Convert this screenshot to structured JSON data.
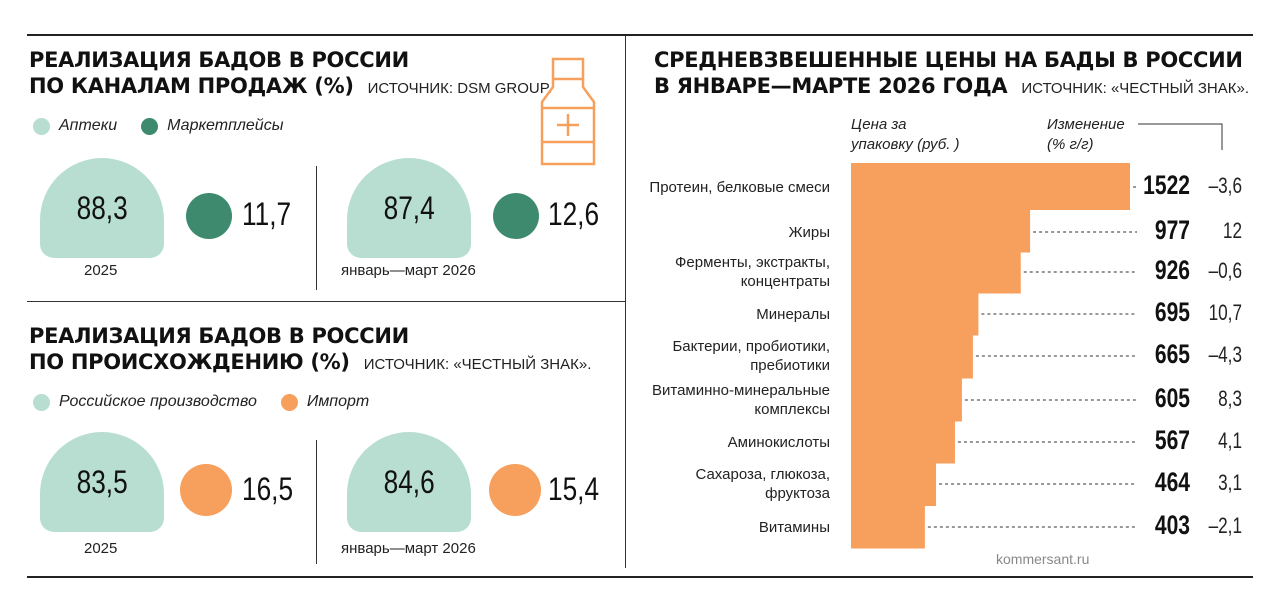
{
  "colors": {
    "teal": "#b7ded1",
    "dark_green": "#3d8a6e",
    "orange": "#f79f5c",
    "text": "#111111"
  },
  "channels": {
    "title_line1": "РЕАЛИЗАЦИЯ БАДОВ В РОССИИ",
    "title_line2": "ПО КАНАЛАМ ПРОДАЖ (%)",
    "source": "ИСТОЧНИК: DSM GROUP.",
    "legend": [
      "Аптеки",
      "Маркетплейсы"
    ],
    "icon": "supplement-bottle-icon",
    "periods": [
      {
        "label": "2025",
        "main": "88,3",
        "secondary": "11,7"
      },
      {
        "label": "январь—март 2026",
        "main": "87,4",
        "secondary": "12,6"
      }
    ]
  },
  "origin": {
    "title_line1": "РЕАЛИЗАЦИЯ БАДОВ В РОССИИ",
    "title_line2": "ПО ПРОИСХОЖДЕНИЮ (%)",
    "source": "ИСТОЧНИК: «ЧЕСТНЫЙ ЗНАК».",
    "legend": [
      "Российское производство",
      "Импорт"
    ],
    "periods": [
      {
        "label": "2025",
        "main": "83,5",
        "secondary": "16,5"
      },
      {
        "label": "январь—март 2026",
        "main": "84,6",
        "secondary": "15,4"
      }
    ]
  },
  "prices": {
    "title_line1": "СРЕДНЕВЗВЕШЕННЫЕ ЦЕНЫ НА БАДЫ В РОССИИ",
    "title_line2": "В ЯНВАРЕ—МАРТЕ 2026 ГОДА",
    "source": "ИСТОЧНИК: «ЧЕСТНЫЙ ЗНАК».",
    "col_price_line1": "Цена за",
    "col_price_line2": "упаковку (руб. )",
    "col_change_line1": "Изменение",
    "col_change_line2": "(% г/г)"
  },
  "credit": "kommersant.ru",
  "chart_data": [
    {
      "type": "bar",
      "title": "РЕАЛИЗАЦИЯ БАДОВ В РОССИИ ПО КАНАЛАМ ПРОДАЖ (%)",
      "categories": [
        "2025",
        "январь—март 2026"
      ],
      "series": [
        {
          "name": "Аптеки",
          "values": [
            88.3,
            87.4
          ]
        },
        {
          "name": "Маркетплейсы",
          "values": [
            11.7,
            12.6
          ]
        }
      ]
    },
    {
      "type": "bar",
      "title": "РЕАЛИЗАЦИЯ БАДОВ В РОССИИ ПО ПРОИСХОЖДЕНИЮ (%)",
      "categories": [
        "2025",
        "январь—март 2026"
      ],
      "series": [
        {
          "name": "Российское производство",
          "values": [
            83.5,
            84.6
          ]
        },
        {
          "name": "Импорт",
          "values": [
            16.5,
            15.4
          ]
        }
      ]
    },
    {
      "type": "bar",
      "title": "СРЕДНЕВЗВЕШЕННЫЕ ЦЕНЫ НА БАДЫ В РОССИИ В ЯНВАРЕ—МАРТЕ 2026 ГОДА",
      "orientation": "horizontal",
      "categories": [
        "Протеин, белковые смеси",
        "Жиры",
        "Ферменты, экстракты, концентраты",
        "Минералы",
        "Бактерии, пробиотики, пребиотики",
        "Витаминно-минеральные комплексы",
        "Аминокислоты",
        "Сахароза, глюкоза, фруктоза",
        "Витамины"
      ],
      "category_lines": [
        [
          "Протеин, белковые смеси"
        ],
        [
          "Жиры"
        ],
        [
          "Ферменты, экстракты,",
          "концентраты"
        ],
        [
          "Минералы"
        ],
        [
          "Бактерии, пробиотики,",
          "пребиотики"
        ],
        [
          "Витаминно-минеральные",
          "комплексы"
        ],
        [
          "Аминокислоты"
        ],
        [
          "Сахароза, глюкоза,",
          "фруктоза"
        ],
        [
          "Витамины"
        ]
      ],
      "values": [
        1522,
        977,
        926,
        695,
        665,
        605,
        567,
        464,
        403
      ],
      "value_labels": [
        "1522",
        "977",
        "926",
        "695",
        "665",
        "605",
        "567",
        "464",
        "403"
      ],
      "change": [
        -3.6,
        12,
        -0.6,
        10.7,
        -4.3,
        8.3,
        4.1,
        3.1,
        -2.1
      ],
      "change_labels": [
        "–3,6",
        "12",
        "–0,6",
        "10,7",
        "–4,3",
        "8,3",
        "4,1",
        "3,1",
        "–2,1"
      ],
      "xlim": [
        0,
        1522
      ]
    }
  ]
}
